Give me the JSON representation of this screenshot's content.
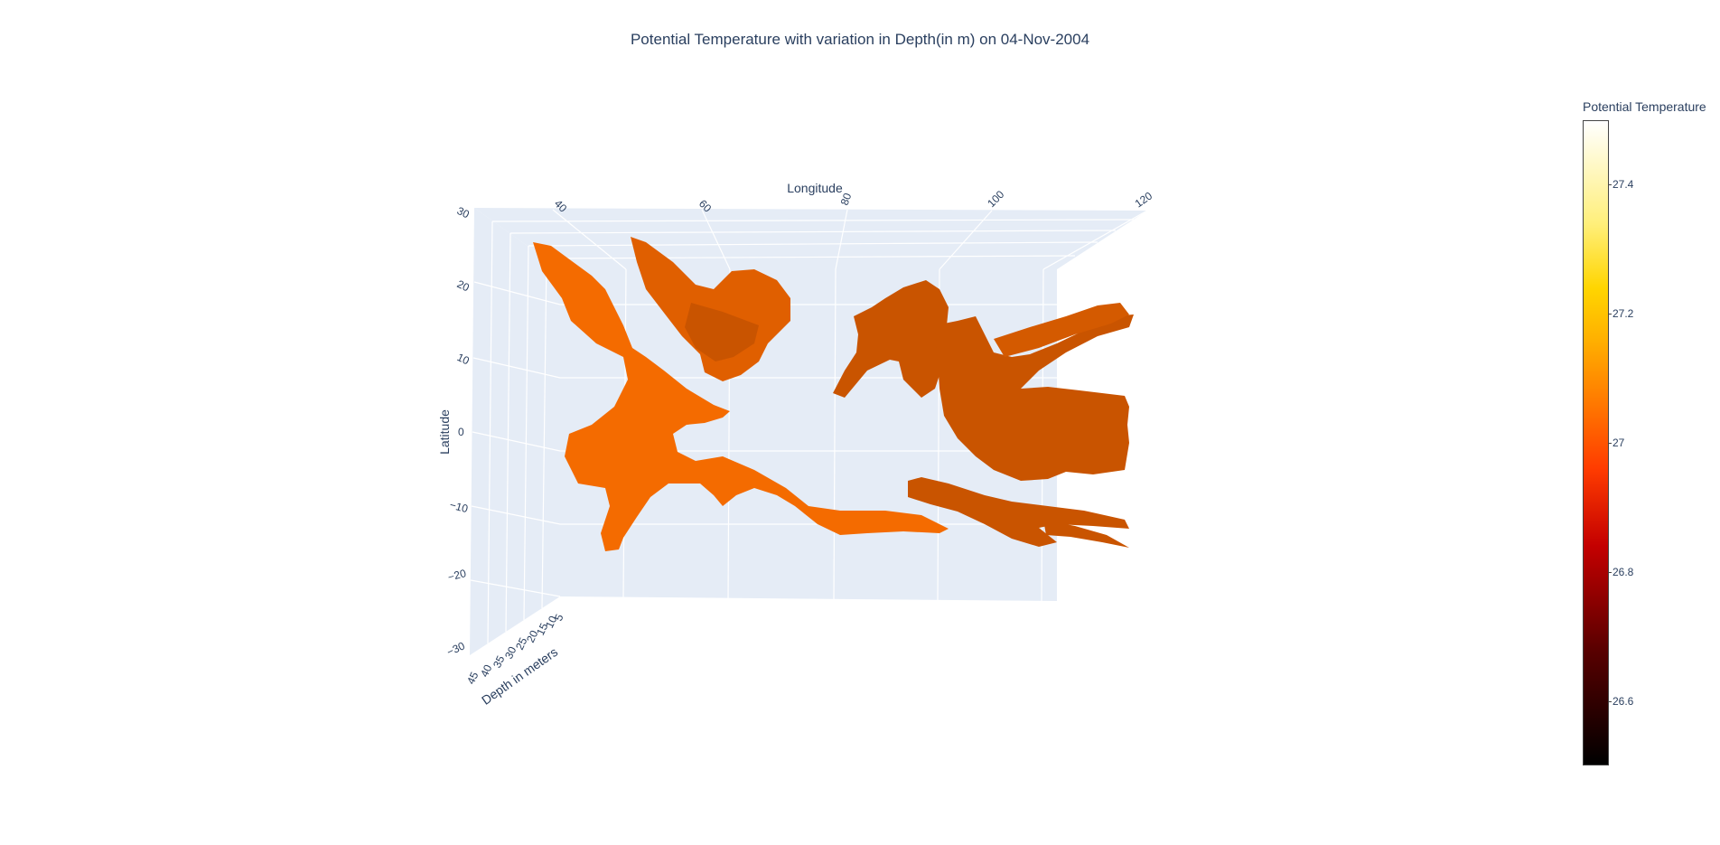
{
  "chart_data": {
    "type": "surface-3d",
    "title": "Potential Temperature with variation in Depth(in m) on 04-Nov-2004",
    "xlabel": "Longitude",
    "ylabel": "Latitude",
    "zlabel": "Depth in meters",
    "x_ticks": [
      "40",
      "60",
      "80",
      "100",
      "120"
    ],
    "y_ticks": [
      "30",
      "20",
      "10",
      "0",
      "−10",
      "−20",
      "−30"
    ],
    "z_ticks": [
      "45",
      "40",
      "35",
      "30",
      "25",
      "20",
      "15",
      "10",
      "5"
    ],
    "colorbar": {
      "title": "Potential Temperature",
      "ticks": [
        "27.4",
        "27.2",
        "27",
        "26.8",
        "26.6"
      ],
      "range": [
        26.5,
        27.5
      ]
    },
    "surface_color": "#f46b00",
    "surface_color_dark": "#c95400",
    "plot_background": "#e5ecf6"
  }
}
